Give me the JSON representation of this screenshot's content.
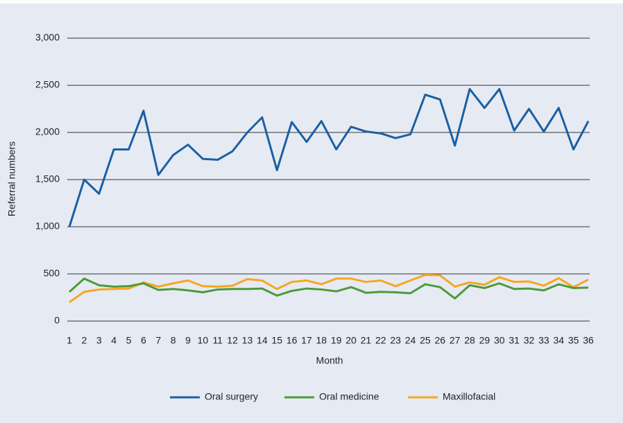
{
  "chart_data": {
    "type": "line",
    "x_label": "Month",
    "y_label": "Referral numbers",
    "categories": [
      "1",
      "2",
      "3",
      "4",
      "5",
      "6",
      "7",
      "8",
      "9",
      "10",
      "11",
      "12",
      "13",
      "14",
      "15",
      "16",
      "17",
      "18",
      "19",
      "20",
      "21",
      "22",
      "23",
      "24",
      "25",
      "26",
      "27",
      "28",
      "29",
      "30",
      "31",
      "32",
      "33",
      "34",
      "35",
      "36"
    ],
    "series": [
      {
        "name": "Oral surgery",
        "color": "#1a5ea3",
        "values": [
          1000,
          1500,
          1350,
          1820,
          1820,
          2230,
          1550,
          1760,
          1870,
          1720,
          1710,
          1800,
          2000,
          2160,
          1600,
          2110,
          1900,
          2120,
          1820,
          2060,
          2010,
          1990,
          1940,
          1980,
          2400,
          2350,
          1860,
          2460,
          2260,
          2460,
          2020,
          2250,
          2010,
          2260,
          1820,
          2120
        ]
      },
      {
        "name": "Oral medicine",
        "color": "#4c9a3a",
        "values": [
          310,
          450,
          380,
          365,
          370,
          400,
          330,
          340,
          325,
          305,
          335,
          340,
          340,
          345,
          270,
          320,
          345,
          335,
          315,
          360,
          300,
          310,
          305,
          295,
          390,
          360,
          240,
          380,
          350,
          400,
          340,
          345,
          325,
          390,
          350,
          355
        ]
      },
      {
        "name": "Maxillofacial",
        "color": "#f5a623",
        "values": [
          200,
          310,
          335,
          340,
          345,
          410,
          365,
          400,
          430,
          370,
          365,
          375,
          445,
          430,
          340,
          415,
          430,
          390,
          450,
          450,
          415,
          430,
          370,
          430,
          490,
          485,
          365,
          410,
          385,
          465,
          415,
          420,
          375,
          455,
          360,
          440
        ]
      }
    ],
    "ylim": [
      0,
      3000
    ],
    "yticks": [
      0,
      500,
      {
        "value": 1000,
        "label": "1,000"
      },
      {
        "value": 1500,
        "label": "1,500"
      },
      {
        "value": 2000,
        "label": "2,000"
      },
      {
        "value": 2500,
        "label": "2,500"
      },
      {
        "value": 3000,
        "label": "3,000"
      }
    ],
    "grid": true,
    "legend": "bottom"
  }
}
